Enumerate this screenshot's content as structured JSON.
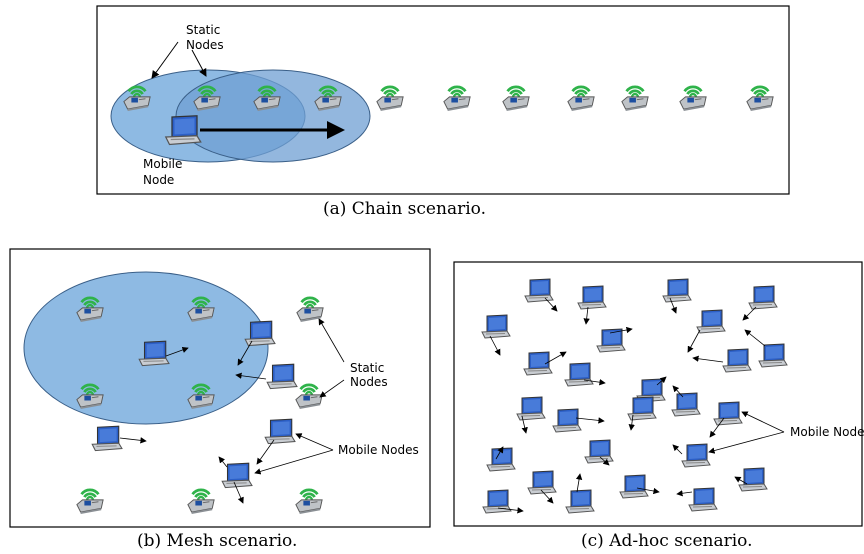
{
  "panels": {
    "chain": {
      "caption": "(a) Chain scenario.",
      "labels": {
        "static_l1": "Static",
        "static_l2": "Nodes",
        "mobile_l1": "Mobile",
        "mobile_l2": "Node"
      }
    },
    "mesh": {
      "caption": "(b) Mesh scenario.",
      "labels": {
        "static_l1": "Static",
        "static_l2": "Nodes",
        "mobile": "Mobile Nodes"
      }
    },
    "adhoc": {
      "caption": "(c) Ad-hoc scenario.",
      "labels": {
        "mobile": "Mobile Nodes"
      }
    }
  },
  "colors": {
    "range_fill": "#7aaede",
    "range_stroke": "#3a5f88",
    "signal_green": "#2fb34a",
    "laptop_screen": "#2c5fc6",
    "router_body": "#bfc3c7"
  }
}
